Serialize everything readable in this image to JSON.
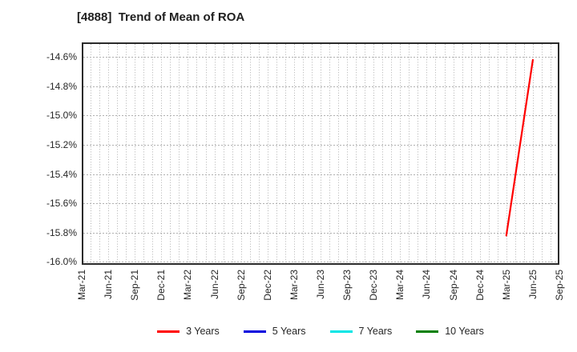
{
  "chart_data": {
    "type": "line",
    "title": "[4888]  Trend of Mean of ROA",
    "x_axis": {
      "start": "Mar-21",
      "end": "Sep-25",
      "months_total": 54,
      "gridlines": "monthly-dotted",
      "tick_labels": [
        "Mar-21",
        "Jun-21",
        "Sep-21",
        "Dec-21",
        "Mar-22",
        "Jun-22",
        "Sep-22",
        "Dec-22",
        "Mar-23",
        "Jun-23",
        "Sep-23",
        "Dec-23",
        "Mar-24",
        "Jun-24",
        "Sep-24",
        "Dec-24",
        "Mar-25",
        "Jun-25",
        "Sep-25"
      ],
      "tick_label_rotation_deg": 90
    },
    "y_axis": {
      "tick_values": [
        -14.6,
        -14.8,
        -15.0,
        -15.2,
        -15.4,
        -15.6,
        -15.8,
        -16.0
      ],
      "tick_suffix": "%",
      "ylim": [
        -16.02,
        -14.5
      ],
      "unit": "percent"
    },
    "series": [
      {
        "name": "3 Years",
        "color": "#ff0000",
        "points": [
          [
            "Mar-25",
            -15.82
          ],
          [
            "Jun-25",
            -14.62
          ]
        ]
      },
      {
        "name": "5 Years",
        "color": "#0000dd",
        "points": []
      },
      {
        "name": "7 Years",
        "color": "#00e5e5",
        "points": []
      },
      {
        "name": "10 Years",
        "color": "#007f00",
        "points": []
      }
    ],
    "legend": {
      "position": "bottom-center",
      "labels": [
        "3 Years",
        "5 Years",
        "7 Years",
        "10 Years"
      ]
    },
    "grid": true,
    "plot_bg": "#ffffff",
    "grid_color": "#b0b0b0",
    "border_color": "#2b2b2b"
  }
}
